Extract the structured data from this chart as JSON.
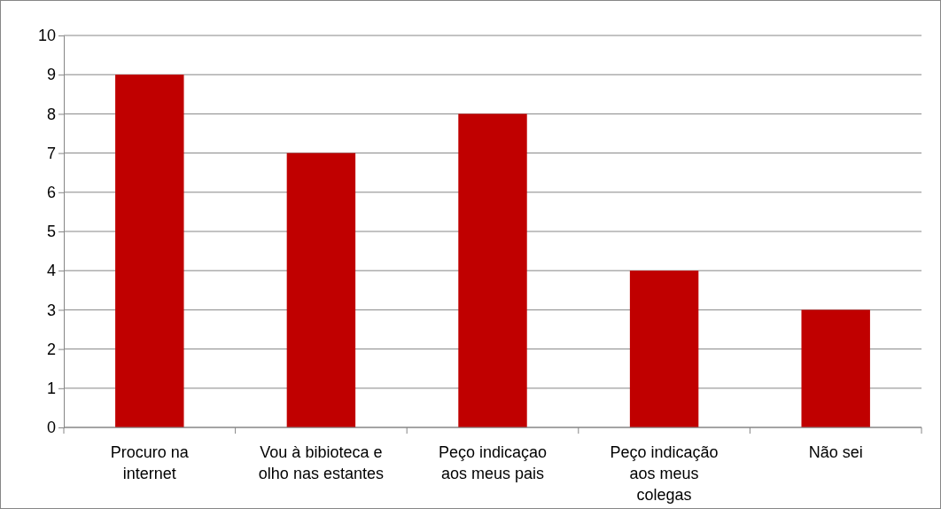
{
  "chart_data": {
    "type": "bar",
    "categories": [
      "Procuro na internet",
      "Vou à bibioteca e olho nas estantes",
      "Peço indicaçao aos meus pais",
      "Peço indicação aos meus colegas",
      "Não sei"
    ],
    "values": [
      9,
      7,
      8,
      4,
      3
    ],
    "color": "#c00000",
    "ylim": [
      0,
      10
    ],
    "yticks": [
      0,
      1,
      2,
      3,
      4,
      5,
      6,
      7,
      8,
      9,
      10
    ],
    "grid": "y"
  }
}
